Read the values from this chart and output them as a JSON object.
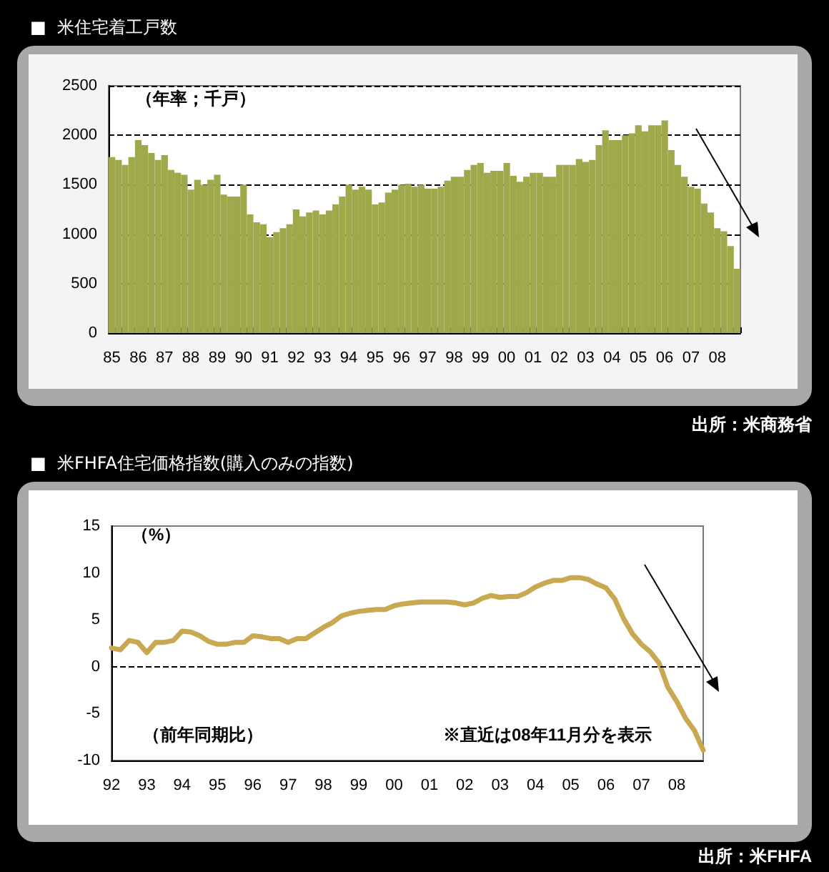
{
  "chart_data": [
    {
      "type": "bar",
      "title": "■  米住宅着工戸数",
      "annotations": [
        "（年率；千戸）",
        "出所：米商務省"
      ],
      "categories": [
        "85",
        null,
        null,
        null,
        "86",
        null,
        null,
        null,
        "87",
        null,
        null,
        null,
        "88",
        null,
        null,
        null,
        "89",
        null,
        null,
        null,
        "90",
        null,
        null,
        null,
        "91",
        null,
        null,
        null,
        "92",
        null,
        null,
        null,
        "93",
        null,
        null,
        null,
        "94",
        null,
        null,
        null,
        "95",
        null,
        null,
        null,
        "96",
        null,
        null,
        null,
        "97",
        null,
        null,
        null,
        "98",
        null,
        null,
        null,
        "99",
        null,
        null,
        null,
        "00",
        null,
        null,
        null,
        "01",
        null,
        null,
        null,
        "02",
        null,
        null,
        null,
        "03",
        null,
        null,
        null,
        "04",
        null,
        null,
        null,
        "05",
        null,
        null,
        null,
        "06",
        null,
        null,
        null,
        "07",
        null,
        null,
        null,
        "08",
        null,
        null,
        null
      ],
      "series": [
        {
          "color": "#a0a84c",
          "values": [
            1780,
            1750,
            1700,
            1780,
            1950,
            1900,
            1820,
            1750,
            1800,
            1650,
            1620,
            1600,
            1450,
            1550,
            1500,
            1550,
            1600,
            1400,
            1380,
            1380,
            1500,
            1200,
            1120,
            1100,
            970,
            1020,
            1060,
            1100,
            1250,
            1180,
            1220,
            1240,
            1200,
            1240,
            1300,
            1380,
            1500,
            1450,
            1480,
            1450,
            1300,
            1320,
            1420,
            1450,
            1500,
            1510,
            1480,
            1500,
            1460,
            1460,
            1480,
            1540,
            1580,
            1580,
            1650,
            1700,
            1720,
            1620,
            1640,
            1640,
            1720,
            1590,
            1530,
            1580,
            1620,
            1620,
            1580,
            1580,
            1700,
            1700,
            1700,
            1760,
            1730,
            1750,
            1900,
            2050,
            1950,
            1950,
            2000,
            2020,
            2100,
            2040,
            2100,
            2100,
            2150,
            1850,
            1700,
            1580,
            1480,
            1460,
            1310,
            1220,
            1060,
            1030,
            880,
            650
          ]
        }
      ],
      "ylim": [
        0,
        2500
      ],
      "yticks": [
        0,
        500,
        1000,
        1500,
        2000,
        2500
      ],
      "grid": "y",
      "line_style": "dashed"
    },
    {
      "type": "line",
      "title": "■  米FHFA住宅価格指数(購入のみの指数)",
      "annotations": [
        "（%）",
        "（前年同期比）",
        "※直近は08年11月分を表示",
        "出所：米FHFA"
      ],
      "categories": [
        "92",
        null,
        null,
        null,
        "93",
        null,
        null,
        null,
        "94",
        null,
        null,
        null,
        "95",
        null,
        null,
        null,
        "96",
        null,
        null,
        null,
        "97",
        null,
        null,
        null,
        "98",
        null,
        null,
        null,
        "99",
        null,
        null,
        null,
        "00",
        null,
        null,
        null,
        "01",
        null,
        null,
        null,
        "02",
        null,
        null,
        null,
        "03",
        null,
        null,
        null,
        "04",
        null,
        null,
        null,
        "05",
        null,
        null,
        null,
        "06",
        null,
        null,
        null,
        "07",
        null,
        null,
        null,
        "08",
        null,
        null,
        null
      ],
      "series": [
        {
          "color": "#c8a850",
          "values": [
            2.0,
            1.8,
            2.8,
            2.6,
            1.5,
            2.6,
            2.6,
            2.8,
            3.8,
            3.7,
            3.3,
            2.7,
            2.4,
            2.4,
            2.6,
            2.6,
            3.3,
            3.2,
            3.0,
            3.0,
            2.6,
            3.0,
            3.0,
            3.6,
            4.2,
            4.7,
            5.4,
            5.7,
            5.9,
            6.0,
            6.1,
            6.1,
            6.5,
            6.7,
            6.8,
            6.9,
            6.9,
            6.9,
            6.9,
            6.8,
            6.6,
            6.8,
            7.3,
            7.6,
            7.4,
            7.5,
            7.5,
            7.9,
            8.5,
            8.9,
            9.2,
            9.2,
            9.5,
            9.5,
            9.3,
            8.8,
            8.4,
            7.2,
            5.1,
            3.5,
            2.4,
            1.6,
            0.4,
            -2.2,
            -3.7,
            -5.5,
            -6.8,
            -8.9
          ]
        }
      ],
      "ylim": [
        -10,
        15
      ],
      "yticks": [
        -10,
        -5,
        0,
        5,
        10,
        15
      ],
      "marker": "none",
      "line_style": "solid",
      "ref_lines": [
        {
          "axis": "y",
          "value": 0,
          "line_style": "dashed"
        }
      ]
    }
  ]
}
